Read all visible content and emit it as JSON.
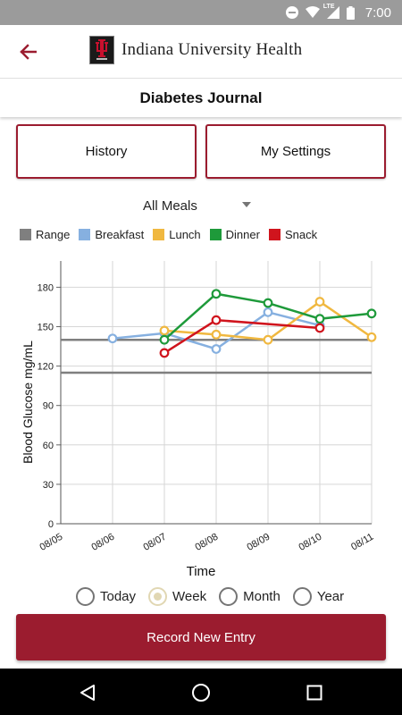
{
  "status_bar": {
    "time": "7:00",
    "network": "LTE"
  },
  "header": {
    "brand": "Indiana University Health"
  },
  "title": "Diabetes Journal",
  "nav_buttons": {
    "history": "History",
    "settings": "My Settings"
  },
  "meal_filter": {
    "selected": "All Meals"
  },
  "legend": [
    {
      "label": "Range",
      "color": "#7f7f7f"
    },
    {
      "label": "Breakfast",
      "color": "#86b0e0"
    },
    {
      "label": "Lunch",
      "color": "#f0b840"
    },
    {
      "label": "Dinner",
      "color": "#1e9a3a"
    },
    {
      "label": "Snack",
      "color": "#d0141d"
    }
  ],
  "chart_data": {
    "type": "line",
    "xlabel": "Time",
    "ylabel": "Blood Glucose mg/mL",
    "x": [
      "08/05",
      "08/06",
      "08/07",
      "08/08",
      "08/09",
      "08/10",
      "08/11"
    ],
    "ylim": [
      0,
      200
    ],
    "yticks": [
      0,
      30,
      60,
      90,
      120,
      150,
      180
    ],
    "grid": true,
    "range_lines": [
      140,
      115
    ],
    "series": [
      {
        "name": "Breakfast",
        "color": "#86b0e0",
        "points": [
          [
            1,
            141
          ],
          [
            2,
            145
          ],
          [
            3,
            133
          ],
          [
            4,
            161
          ],
          [
            5,
            151
          ]
        ]
      },
      {
        "name": "Lunch",
        "color": "#f0b840",
        "points": [
          [
            2,
            147
          ],
          [
            3,
            144
          ],
          [
            4,
            140
          ],
          [
            5,
            169
          ],
          [
            6,
            142
          ]
        ]
      },
      {
        "name": "Dinner",
        "color": "#1e9a3a",
        "points": [
          [
            2,
            140
          ],
          [
            3,
            175
          ],
          [
            4,
            168
          ],
          [
            5,
            156
          ],
          [
            6,
            160
          ]
        ]
      },
      {
        "name": "Snack",
        "color": "#d0141d",
        "points": [
          [
            2,
            130
          ],
          [
            3,
            155
          ],
          [
            5,
            149
          ]
        ]
      }
    ]
  },
  "time_range": {
    "options": [
      "Today",
      "Week",
      "Month",
      "Year"
    ],
    "selected": "Week"
  },
  "record_button": "Record New Entry",
  "icons": {
    "back": "arrow-left-icon",
    "logo": "iu-trident-logo",
    "dropdown": "caret-down-icon",
    "nav_back": "triangle-back-icon",
    "nav_home": "circle-home-icon",
    "nav_recents": "square-recents-icon"
  },
  "colors": {
    "brand": "#9b1c2f",
    "status_bar": "#9b9b9b",
    "radio_selected": "#e1d7b3"
  }
}
